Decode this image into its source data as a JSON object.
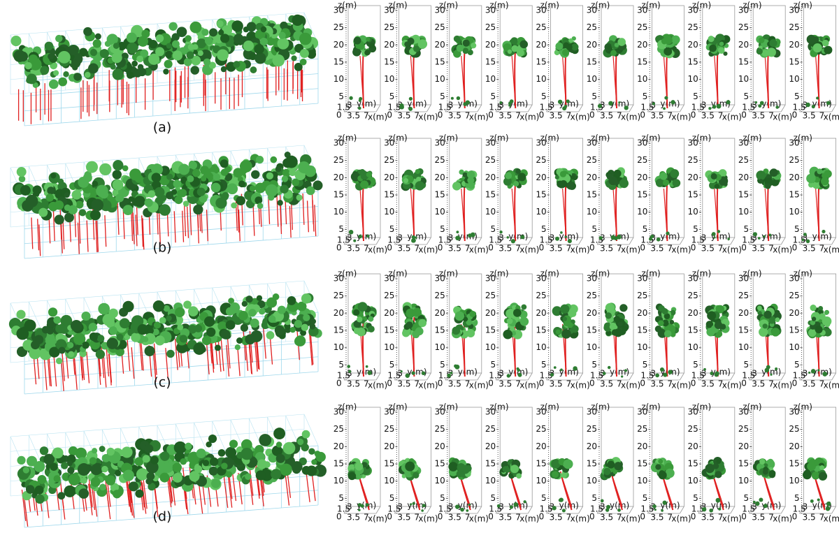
{
  "figure": {
    "panel_labels": [
      "(a)",
      "(b)",
      "(c)",
      "(d)"
    ],
    "small_axes": {
      "z_label": "z(m)",
      "z_ticks": [
        0,
        5,
        10,
        15,
        20,
        25,
        30
      ],
      "y_label": "y(m)",
      "y_ticks": [
        1.5,
        3
      ],
      "x_label": "x(m)",
      "x_ticks": [
        3.5,
        7
      ]
    }
  }
}
